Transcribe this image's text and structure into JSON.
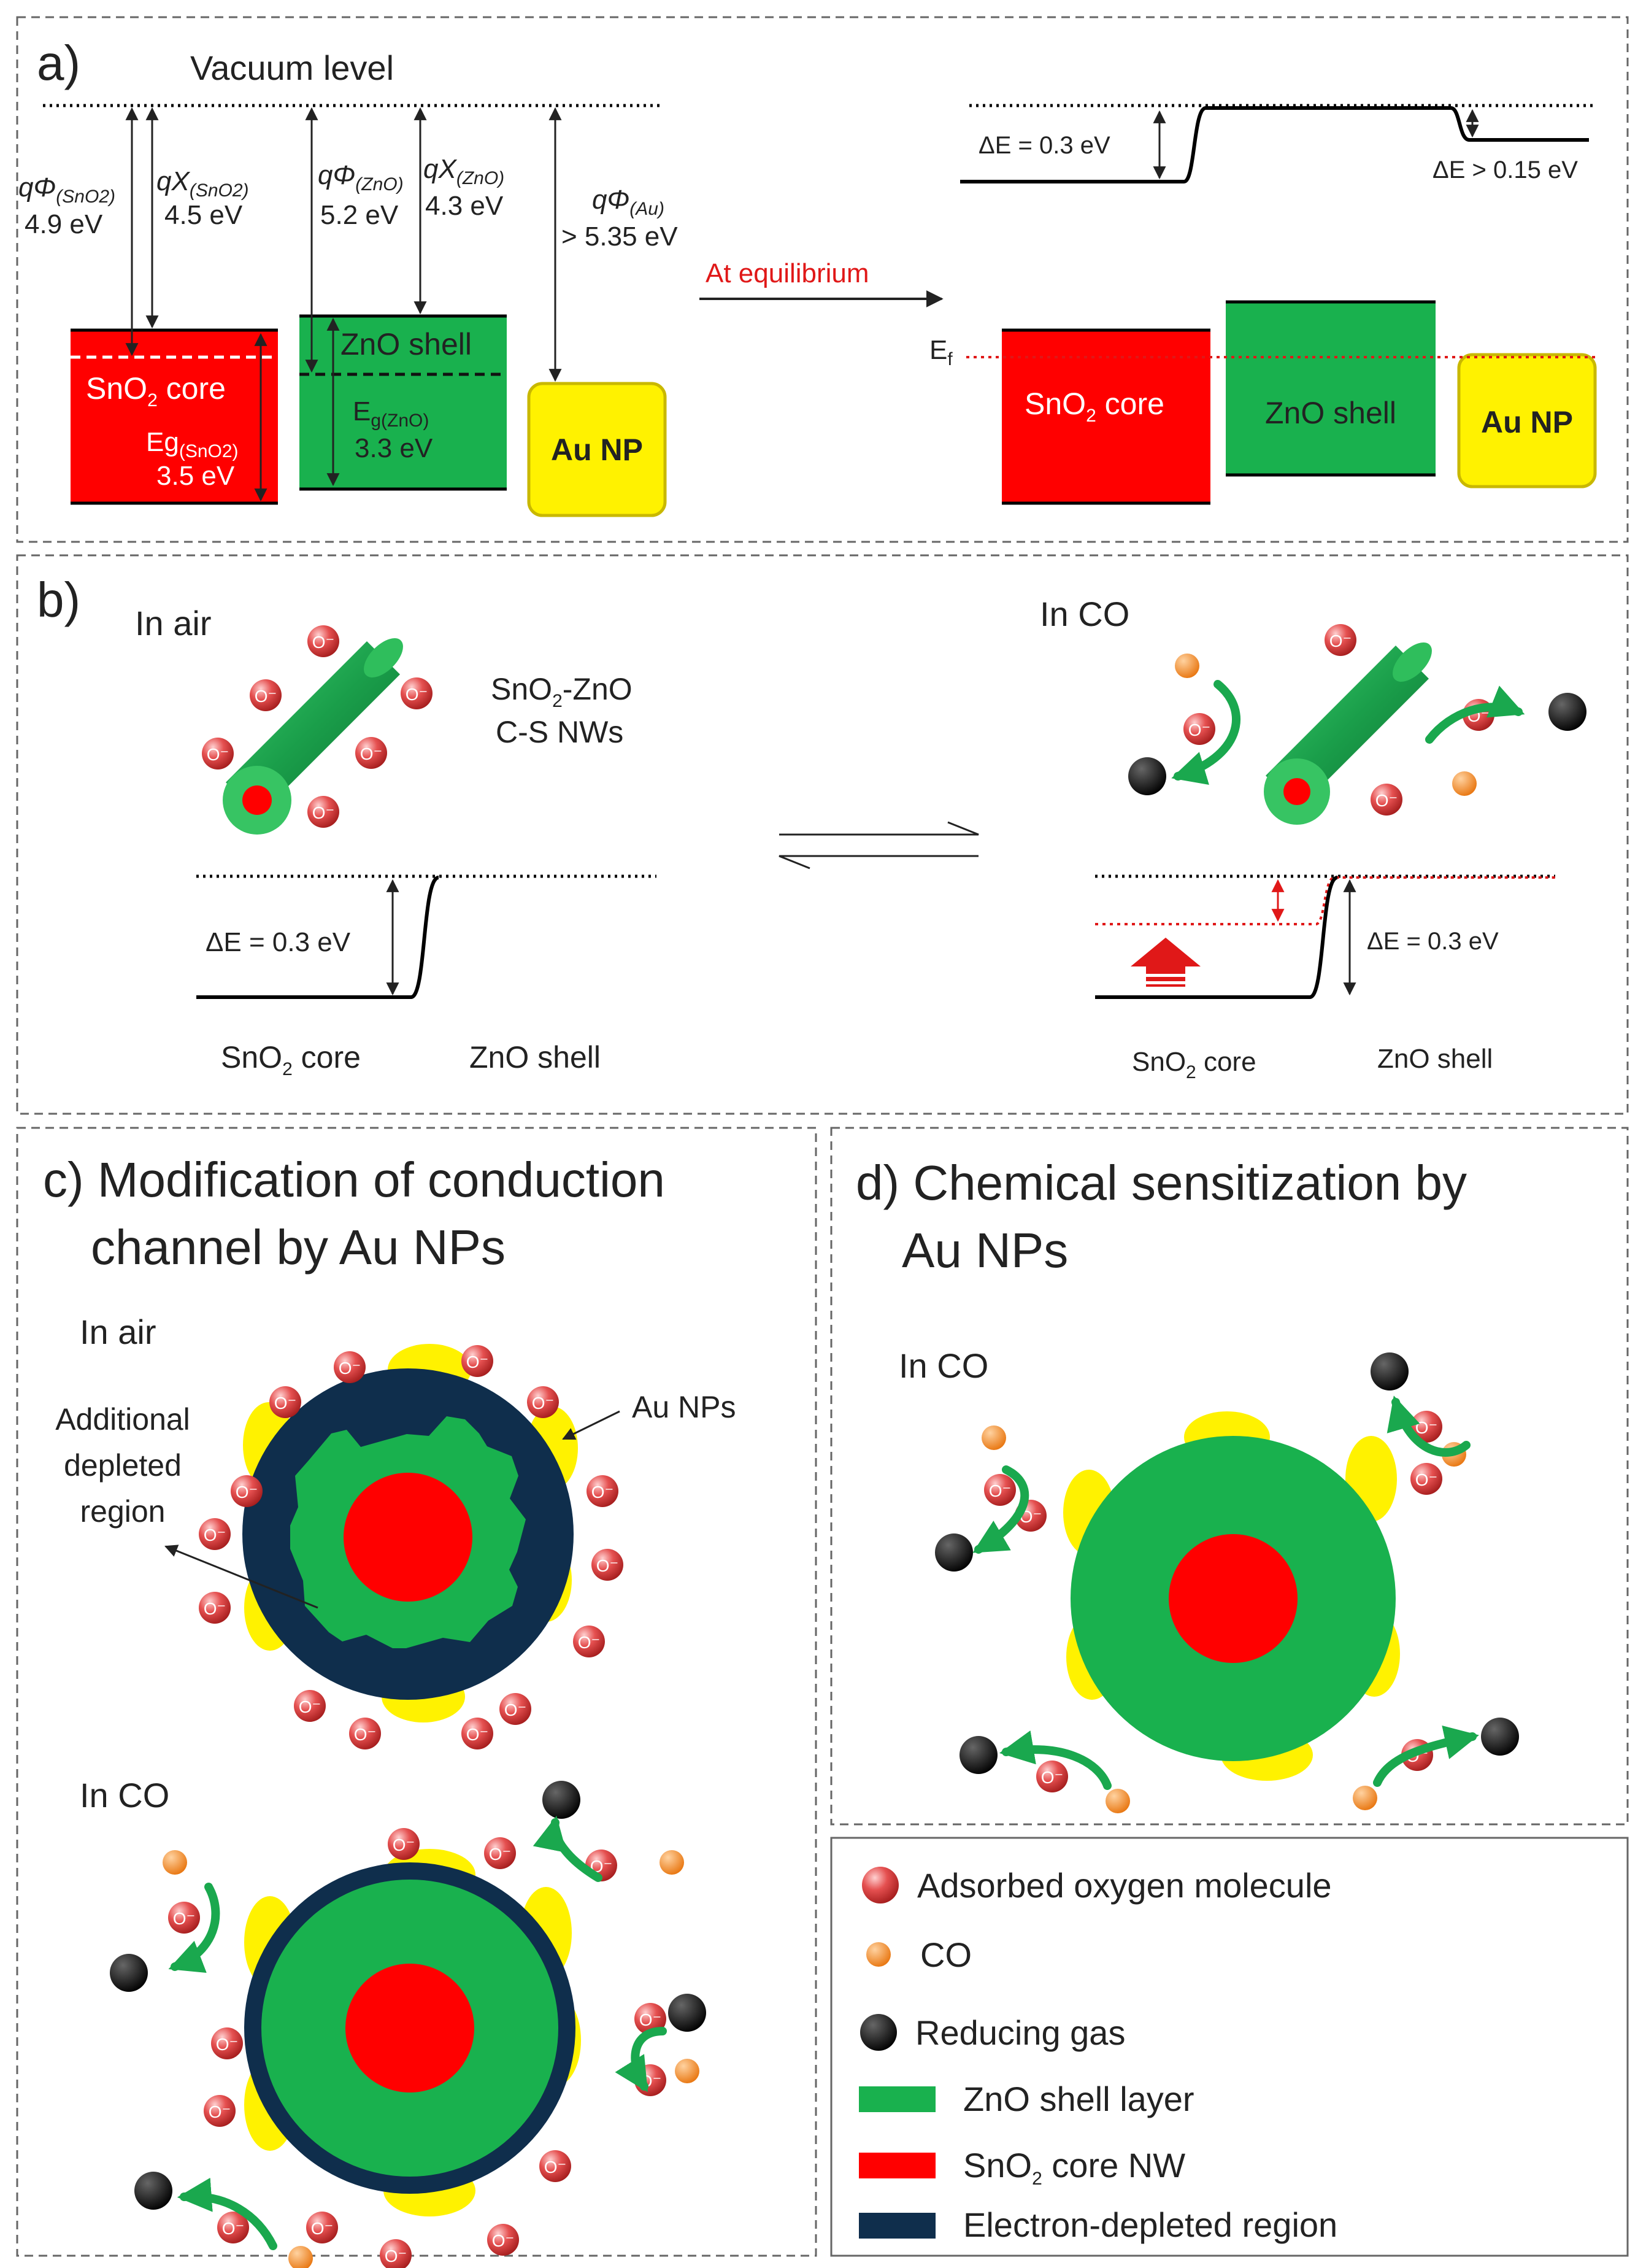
{
  "colors": {
    "sno2": "#ff0000",
    "zno": "#19b14e",
    "au": "#fff200",
    "depleted": "#0f2e4c",
    "oxygen": "#e55050",
    "co": "#f5892a",
    "reducing_gas": "#000000",
    "arrow_green": "#1aa84e",
    "fermi_red": "#e01818"
  },
  "panel_a": {
    "label": "a)",
    "vacuum_level": "Vacuum level",
    "phi_sno2": {
      "sym": "qΦ",
      "sub": "(SnO2)",
      "value": "4.9 eV"
    },
    "chi_sno2": {
      "sym": "qΧ",
      "sub": "(SnO2)",
      "value": "4.5 eV"
    },
    "phi_zno": {
      "sym": "qΦ",
      "sub": "(ZnO)",
      "value": "5.2 eV"
    },
    "chi_zno": {
      "sym": "qΧ",
      "sub": "(ZnO)",
      "value": "4.3 eV"
    },
    "phi_au": {
      "sym": "qΦ",
      "sub": "(Au)",
      "value": "> 5.35 eV"
    },
    "sno2_core": {
      "main": "SnO",
      "sub": "2",
      "rest": " core"
    },
    "eg_sno2": {
      "sym": "Eg",
      "sub": "(SnO2)",
      "value": "3.5 eV"
    },
    "zno_shell": "ZnO shell",
    "eg_zno": {
      "sym": "E",
      "sub": "g(ZnO)",
      "value": "3.3 eV"
    },
    "au_np": "Au NP",
    "at_equilibrium": "At equilibrium",
    "delta_e_1": "ΔE = 0.3 eV",
    "delta_e_2": "ΔE > 0.15 eV",
    "ef": {
      "sym": "E",
      "sub": "f"
    },
    "eq_zno_shell": "ZnO shell",
    "eq_au_np": "Au NP"
  },
  "panel_b": {
    "label": "b)",
    "in_air": "In air",
    "in_co": "In CO",
    "nw_label_1": {
      "main": "SnO",
      "sub": "2",
      "rest": "-ZnO"
    },
    "nw_label_2": "C-S NWs",
    "oxygen_label": "O⁻",
    "delta_e_air": "ΔE = 0.3 eV",
    "delta_e_co": "ΔE = 0.3 eV",
    "sno2_core": {
      "main": "SnO",
      "sub": "2",
      "rest": " core"
    },
    "zno_shell": "ZnO  shell"
  },
  "panel_c": {
    "title_line1": "c) Modification of conduction",
    "title_line2": "channel by Au NPs",
    "in_air": "In air",
    "additional_1": "Additional",
    "additional_2": "depleted",
    "additional_3": "region",
    "au_nps": "Au NPs",
    "in_co": "In CO"
  },
  "panel_d": {
    "title_line1": "d) Chemical sensitization by",
    "title_line2": "Au NPs",
    "in_co": "In CO"
  },
  "legend": {
    "oxygen": "Adsorbed oxygen molecule",
    "co": "CO",
    "reducing": "Reducing gas",
    "zno": "ZnO shell layer",
    "sno2": {
      "main": "SnO",
      "sub": "2",
      "rest": " core NW"
    },
    "depleted": "Electron-depleted region"
  }
}
